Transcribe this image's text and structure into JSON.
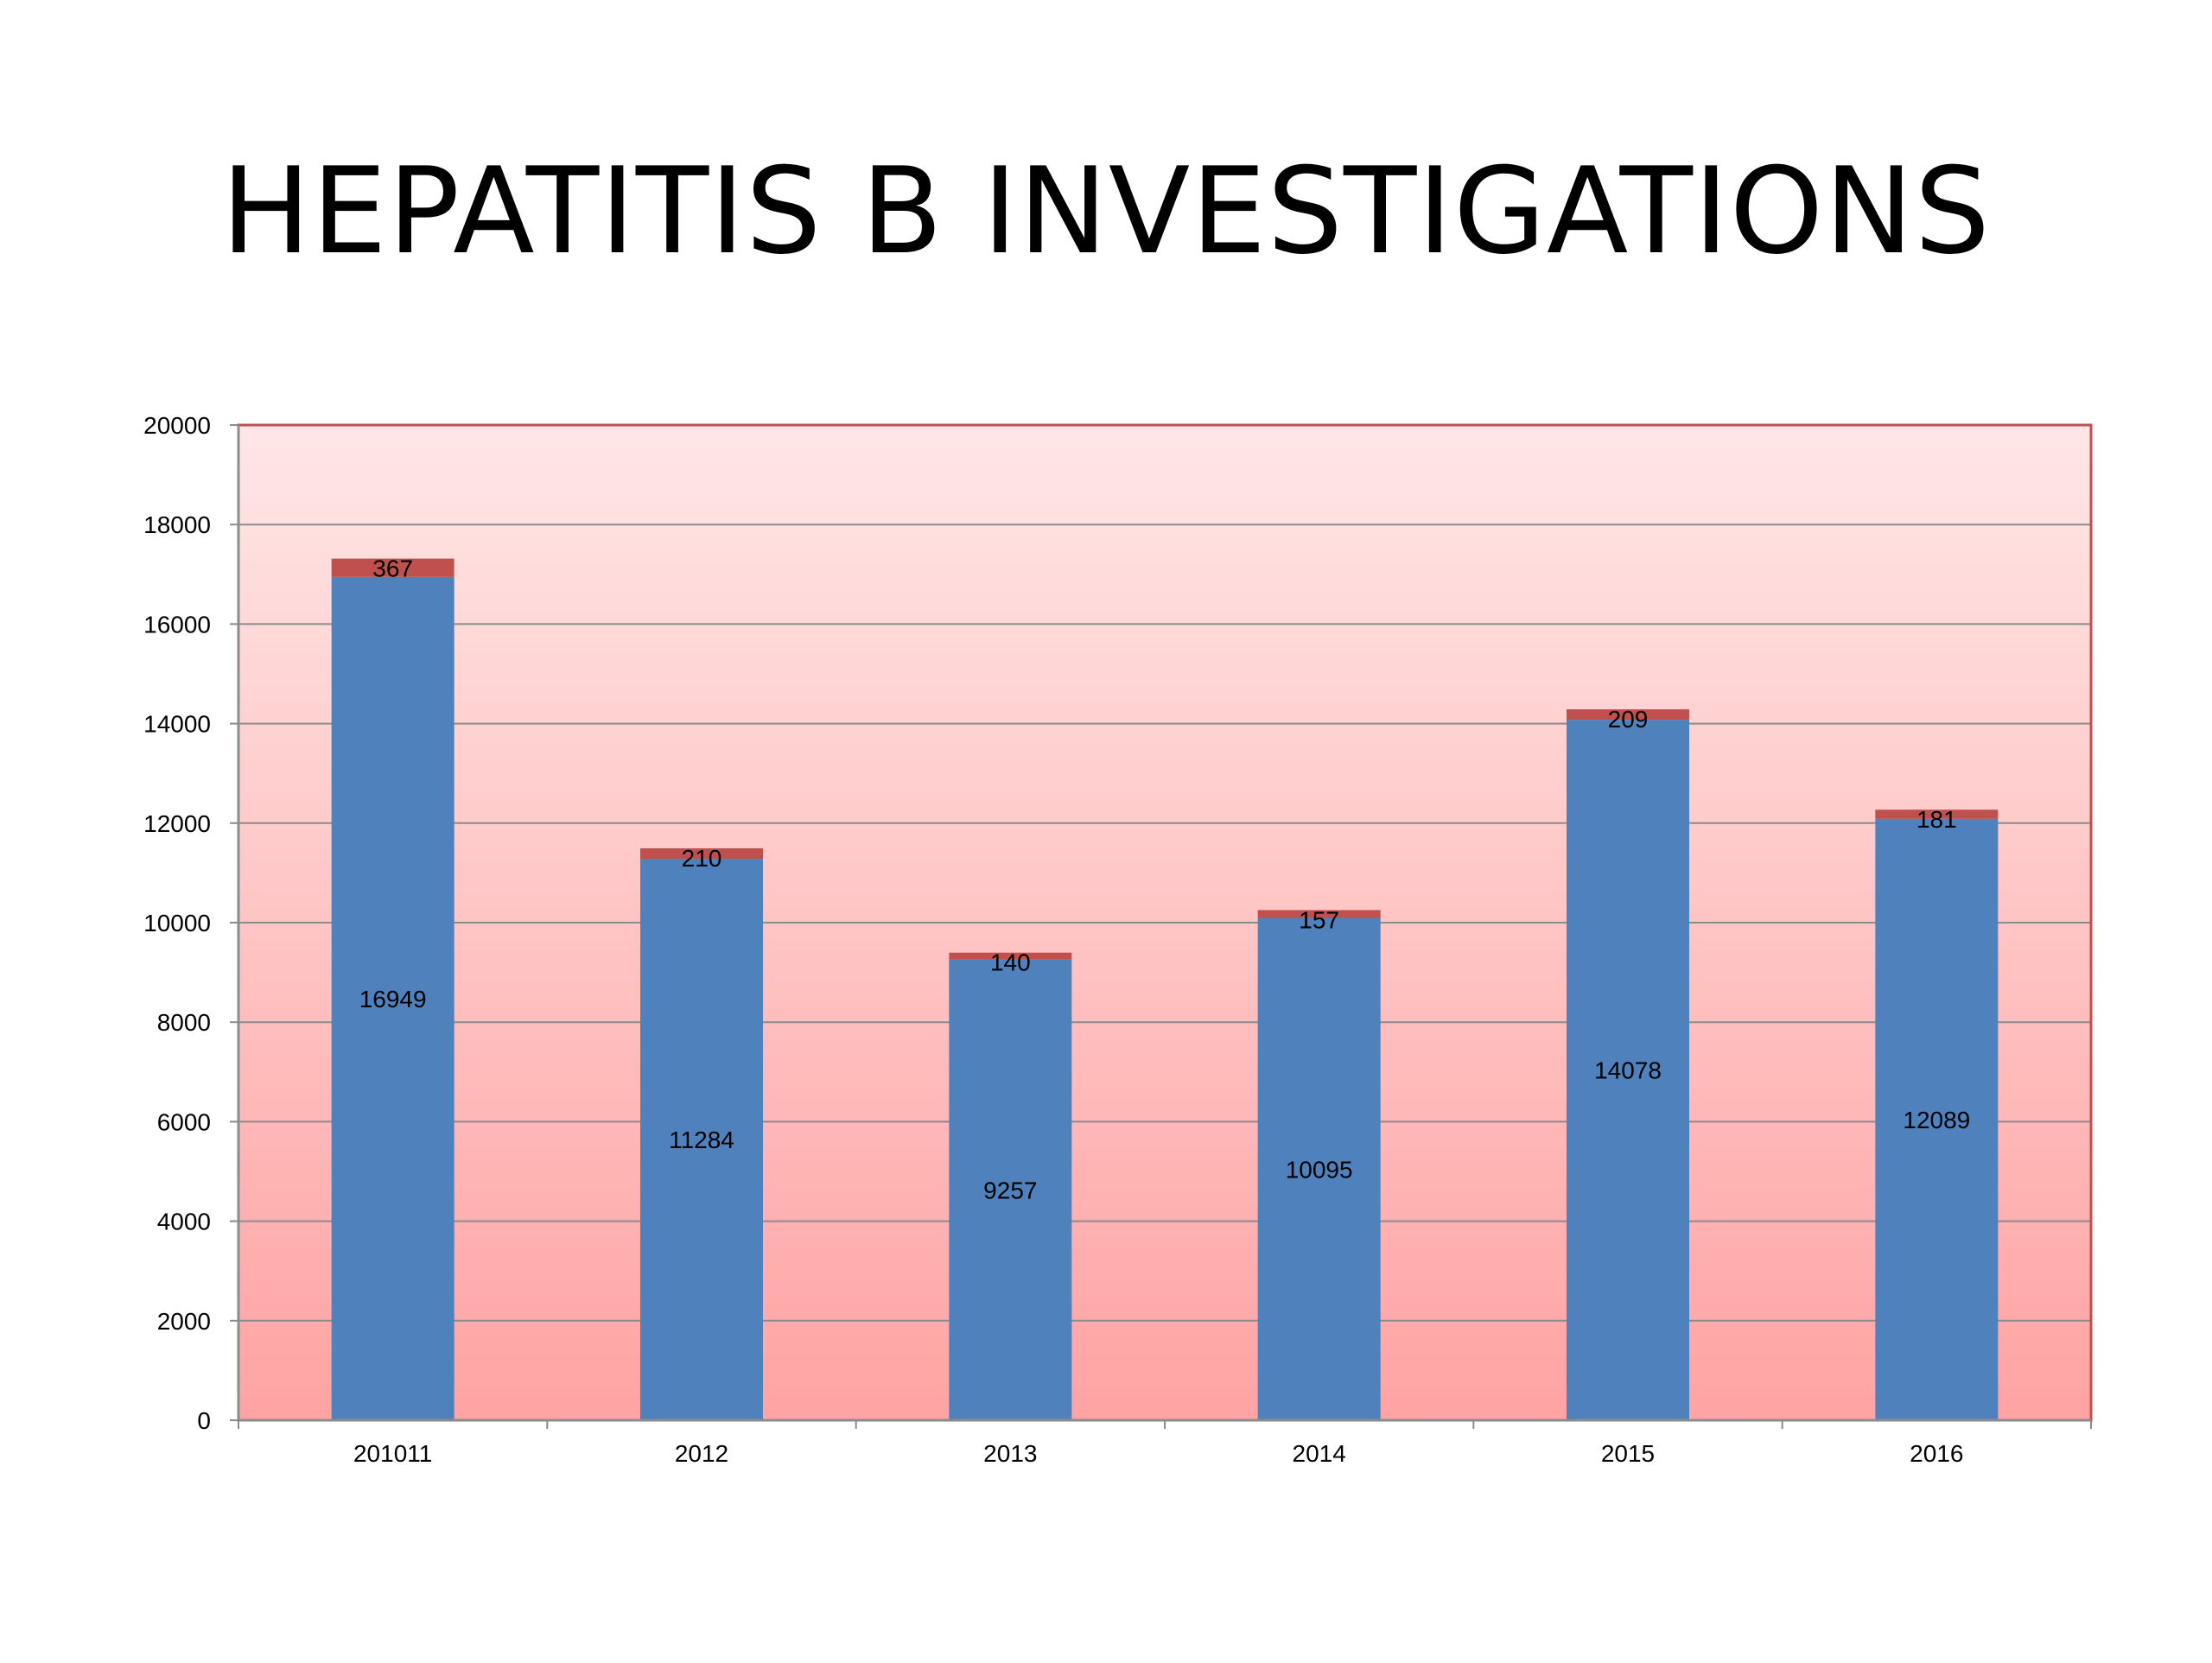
{
  "slide": {
    "title": "HEPATITIS B INVESTIGATIONS"
  },
  "colors": {
    "plot_bg_top": "#ffe6e6",
    "plot_bg_bottom": "#ffa3a3",
    "plot_border": "#c0504d",
    "gridline": "#8c8c8c",
    "series_1": "#4f81bd",
    "series_2": "#c0504d",
    "text": "#000000"
  },
  "chart_data": {
    "type": "bar",
    "stacked": true,
    "title": "",
    "xlabel": "",
    "ylabel": "",
    "categories": [
      "201011",
      "2012",
      "2013",
      "2014",
      "2015",
      "2016"
    ],
    "series": [
      {
        "values": [
          16949,
          11284,
          9257,
          10095,
          14078,
          12089
        ],
        "color": "#4f81bd"
      },
      {
        "values": [
          367,
          210,
          140,
          157,
          209,
          181
        ],
        "color": "#c0504d"
      }
    ],
    "ylim": [
      0,
      20000
    ],
    "yticks": [
      "0",
      "2000",
      "4000",
      "6000",
      "8000",
      "10000",
      "12000",
      "14000",
      "16000",
      "18000",
      "20000"
    ],
    "grid": true,
    "legend": "none",
    "data_labels": true
  }
}
